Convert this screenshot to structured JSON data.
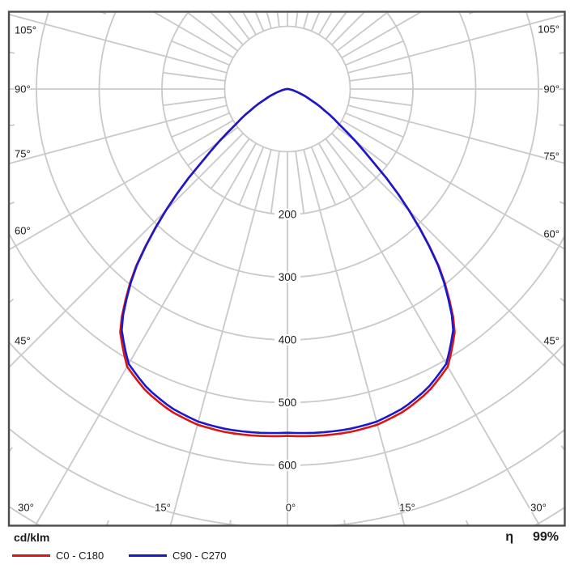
{
  "chart_data": {
    "type": "polar",
    "subtype": "luminous-intensity-distribution",
    "units_label": "cd/klm",
    "gamma_deg": [
      0,
      5,
      10,
      15,
      20,
      25,
      30,
      35,
      40,
      45,
      50,
      55,
      60,
      65,
      70,
      75,
      80,
      85,
      90
    ],
    "series": [
      {
        "name": "C0 - C180",
        "color": "#d81616",
        "values": [
          553,
          555,
          556,
          554,
          546,
          532,
          511,
          466,
          382,
          275,
          170,
          105,
          68,
          40,
          23,
          12,
          5,
          2,
          0
        ]
      },
      {
        "name": "C90 - C270",
        "color": "#1a1acd",
        "values": [
          548,
          550,
          551,
          549,
          541,
          527,
          506,
          462,
          380,
          274,
          170,
          105,
          68,
          40,
          23,
          12,
          5,
          2,
          0
        ]
      }
    ],
    "ring_values": [
      100,
      200,
      300,
      400,
      500,
      600,
      700,
      800
    ],
    "ring_labels": [
      "200",
      "300",
      "400",
      "500",
      "600"
    ],
    "angle_step_major_deg": 15,
    "angle_step_minor_deg": 7.5,
    "angle_labels": {
      "left": [
        "105°",
        "90°",
        "75°",
        "60°",
        "45°"
      ],
      "bottom": [
        "30°",
        "15°",
        "0°",
        "15°",
        "30°"
      ],
      "right": [
        "105°",
        "90°",
        "75°",
        "60°",
        "45°"
      ]
    },
    "efficiency": {
      "symbol": "η",
      "value": "99%"
    },
    "grid_color": "#c9c9c9",
    "border_color": "#4d4d4d"
  },
  "legend": {
    "units": "cd/klm",
    "items": [
      {
        "label": "C0 - C180"
      },
      {
        "label": "C90 - C270"
      }
    ],
    "eta_symbol": "η",
    "eta_value": "99%"
  }
}
